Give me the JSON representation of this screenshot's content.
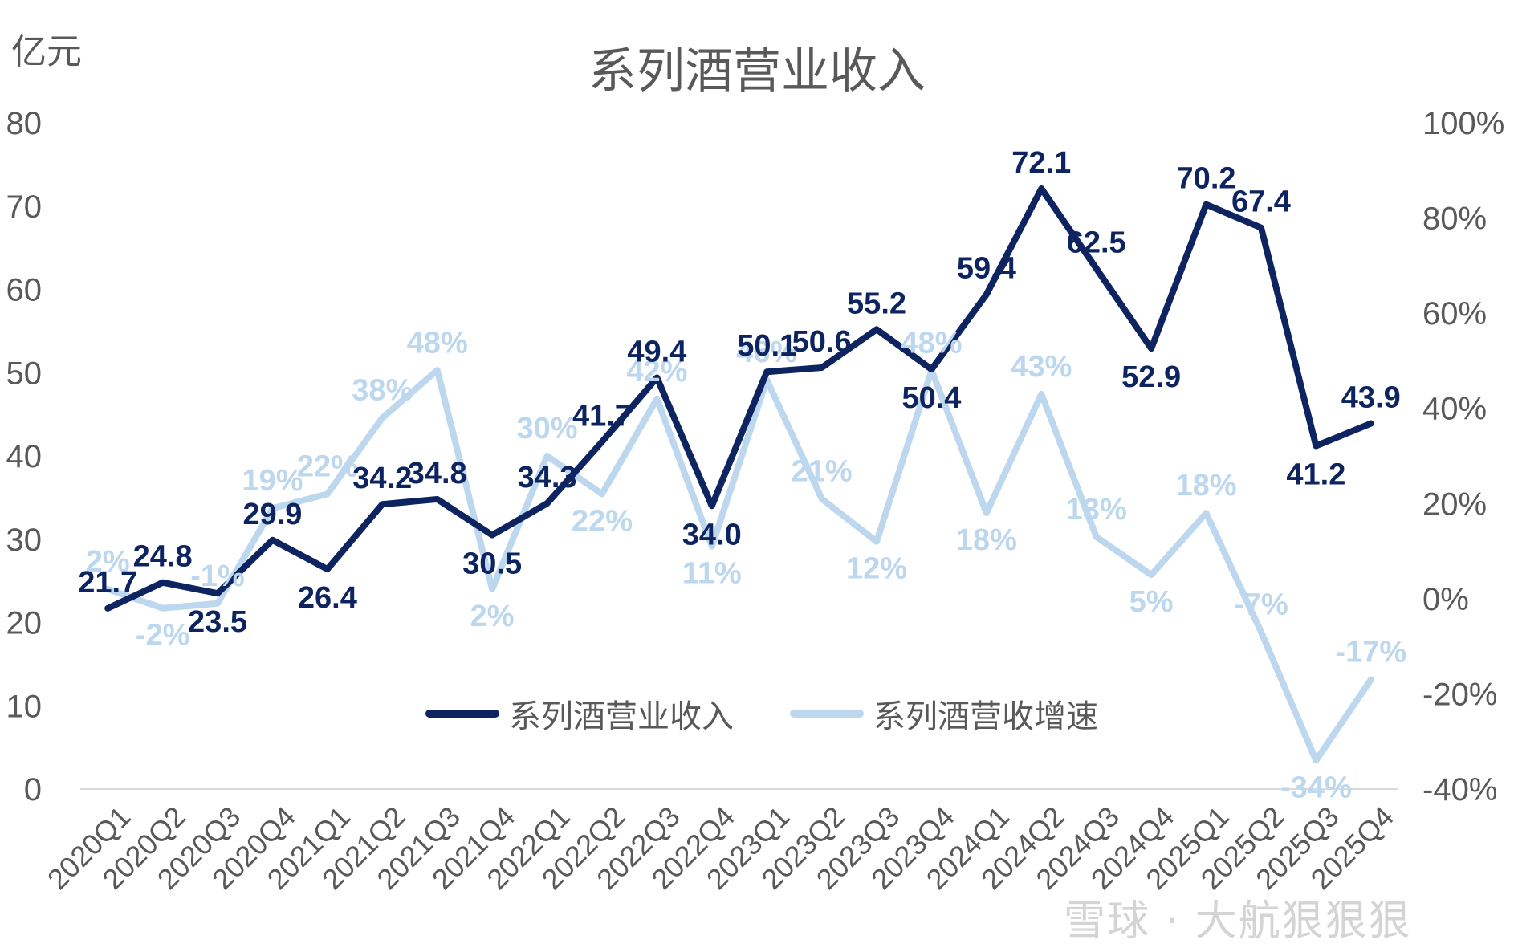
{
  "title": "系列酒营业收入",
  "unit_label": "亿元",
  "watermark": "雪球 · 大航狠狠狠",
  "colors": {
    "revenue": "#0d2460",
    "growth": "#bdd7ee",
    "axis_text": "#595959",
    "axis_line": "#d9d9d9"
  },
  "chart_data": {
    "type": "line",
    "title": "系列酒营业收入",
    "x": [
      "2020Q1",
      "2020Q2",
      "2020Q3",
      "2020Q4",
      "2021Q1",
      "2021Q2",
      "2021Q3",
      "2021Q4",
      "2022Q1",
      "2022Q2",
      "2022Q3",
      "2022Q4",
      "2023Q1",
      "2023Q2",
      "2023Q3",
      "2023Q4",
      "2024Q1",
      "2024Q2",
      "2024Q3",
      "2024Q4",
      "2025Q1",
      "2025Q2",
      "2025Q3",
      "2025Q4"
    ],
    "ylim_left": [
      0,
      80
    ],
    "yticks_left": [
      "0",
      "10",
      "20",
      "30",
      "40",
      "50",
      "60",
      "70",
      "80"
    ],
    "ylim_right": [
      -40,
      100
    ],
    "yticks_right": [
      "-40%",
      "-20%",
      "0%",
      "20%",
      "40%",
      "60%",
      "80%",
      "100%"
    ],
    "grid": false,
    "legend_position": "bottom-center",
    "series": [
      {
        "name": "系列酒营业收入",
        "axis": "left",
        "values": [
          21.7,
          24.8,
          23.5,
          29.9,
          26.4,
          34.2,
          34.8,
          30.5,
          34.3,
          41.7,
          49.4,
          34.0,
          50.1,
          50.6,
          55.2,
          50.4,
          59.4,
          72.1,
          62.5,
          52.9,
          70.2,
          67.4,
          41.2,
          43.9
        ],
        "labels": [
          "21.7",
          "24.8",
          "23.5",
          "29.9",
          "26.4",
          "34.2",
          "34.8",
          "30.5",
          "34.3",
          "41.7",
          "49.4",
          "34.0",
          "50.1",
          "50.6",
          "55.2",
          "50.4",
          "59.4",
          "72.1",
          "62.5",
          "52.9",
          "70.2",
          "67.4",
          "41.2",
          "43.9"
        ]
      },
      {
        "name": "系列酒营收增速",
        "axis": "right",
        "values": [
          2,
          -2,
          -1,
          19,
          22,
          38,
          48,
          2,
          30,
          22,
          42,
          11,
          46,
          21,
          12,
          48,
          18,
          43,
          13,
          5,
          18,
          -7,
          -34,
          -17
        ],
        "labels": [
          "2%",
          "-2%",
          "-1%",
          "19%",
          "22%",
          "38%",
          "48%",
          "2%",
          "30%",
          "22%",
          "42%",
          "11%",
          "46%",
          "21%",
          "12%",
          "48%",
          "18%",
          "43%",
          "13%",
          "5%",
          "18%",
          "-7%",
          "-34%",
          "-17%"
        ]
      }
    ]
  }
}
